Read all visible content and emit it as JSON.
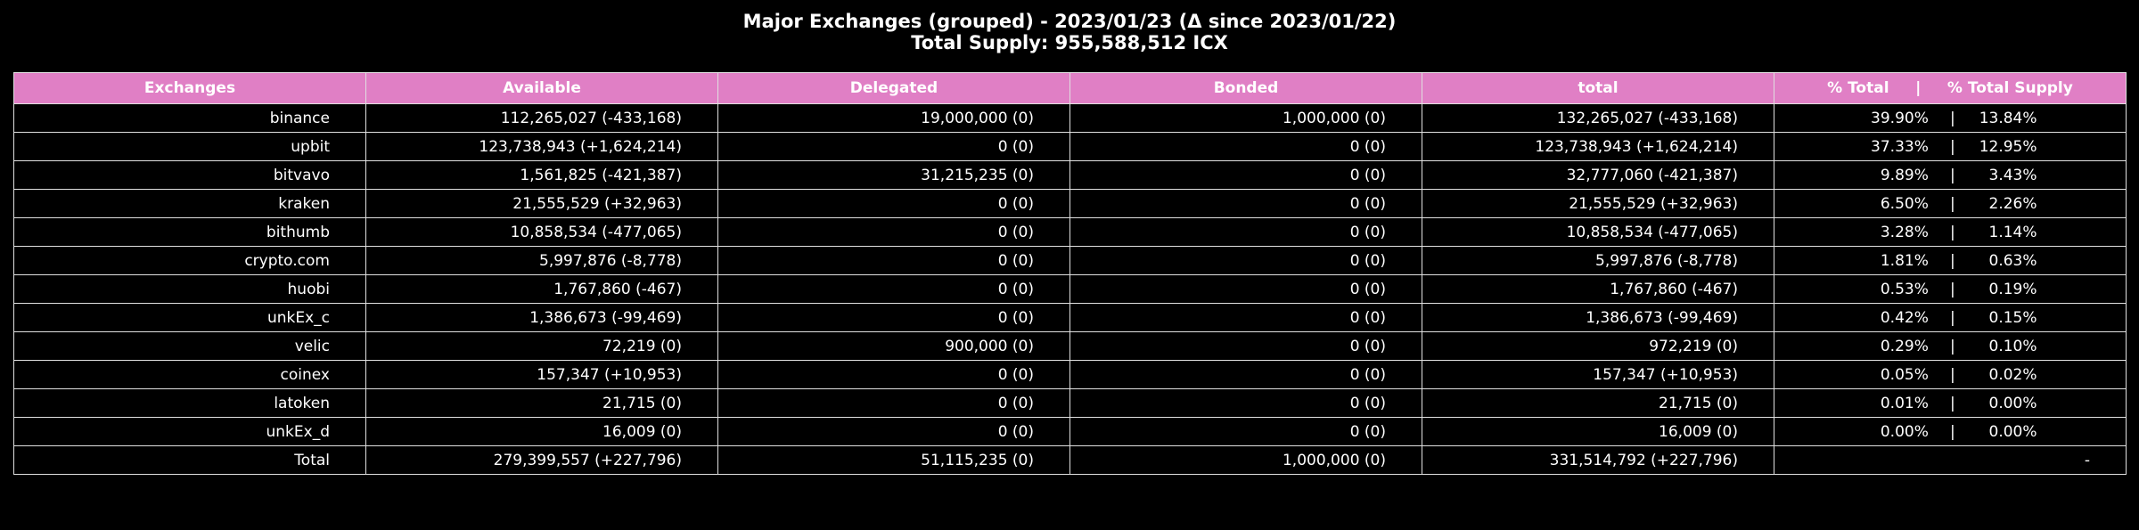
{
  "chart_data": {
    "type": "table",
    "title": "Major Exchanges (grouped) - 2023/01/23 (Δ since 2023/01/22)",
    "subtitle": "Total Supply: 955,588,512 ICX",
    "columns": [
      "Exchanges",
      "Available",
      "Delegated",
      "Bonded",
      "total",
      "% Total     |     % Total Supply"
    ],
    "rows": [
      {
        "exchange": "binance",
        "available": "112,265,027 (-433,168)",
        "delegated": "19,000,000 (0)",
        "bonded": "1,000,000 (0)",
        "total": "132,265,027 (-433,168)",
        "pct_total": "39.90%",
        "sep": "|",
        "pct_supply": "13.84%"
      },
      {
        "exchange": "upbit",
        "available": "123,738,943 (+1,624,214)",
        "delegated": "0 (0)",
        "bonded": "0 (0)",
        "total": "123,738,943 (+1,624,214)",
        "pct_total": "37.33%",
        "sep": "|",
        "pct_supply": "12.95%"
      },
      {
        "exchange": "bitvavo",
        "available": "1,561,825 (-421,387)",
        "delegated": "31,215,235 (0)",
        "bonded": "0 (0)",
        "total": "32,777,060 (-421,387)",
        "pct_total": "9.89%",
        "sep": "|",
        "pct_supply": "3.43%"
      },
      {
        "exchange": "kraken",
        "available": "21,555,529 (+32,963)",
        "delegated": "0 (0)",
        "bonded": "0 (0)",
        "total": "21,555,529 (+32,963)",
        "pct_total": "6.50%",
        "sep": "|",
        "pct_supply": "2.26%"
      },
      {
        "exchange": "bithumb",
        "available": "10,858,534 (-477,065)",
        "delegated": "0 (0)",
        "bonded": "0 (0)",
        "total": "10,858,534 (-477,065)",
        "pct_total": "3.28%",
        "sep": "|",
        "pct_supply": "1.14%"
      },
      {
        "exchange": "crypto.com",
        "available": "5,997,876 (-8,778)",
        "delegated": "0 (0)",
        "bonded": "0 (0)",
        "total": "5,997,876 (-8,778)",
        "pct_total": "1.81%",
        "sep": "|",
        "pct_supply": "0.63%"
      },
      {
        "exchange": "huobi",
        "available": "1,767,860 (-467)",
        "delegated": "0 (0)",
        "bonded": "0 (0)",
        "total": "1,767,860 (-467)",
        "pct_total": "0.53%",
        "sep": "|",
        "pct_supply": "0.19%"
      },
      {
        "exchange": "unkEx_c",
        "available": "1,386,673 (-99,469)",
        "delegated": "0 (0)",
        "bonded": "0 (0)",
        "total": "1,386,673 (-99,469)",
        "pct_total": "0.42%",
        "sep": "|",
        "pct_supply": "0.15%"
      },
      {
        "exchange": "velic",
        "available": "72,219 (0)",
        "delegated": "900,000 (0)",
        "bonded": "0 (0)",
        "total": "972,219 (0)",
        "pct_total": "0.29%",
        "sep": "|",
        "pct_supply": "0.10%"
      },
      {
        "exchange": "coinex",
        "available": "157,347 (+10,953)",
        "delegated": "0 (0)",
        "bonded": "0 (0)",
        "total": "157,347 (+10,953)",
        "pct_total": "0.05%",
        "sep": "|",
        "pct_supply": "0.02%"
      },
      {
        "exchange": "latoken",
        "available": "21,715 (0)",
        "delegated": "0 (0)",
        "bonded": "0 (0)",
        "total": "21,715 (0)",
        "pct_total": "0.01%",
        "sep": "|",
        "pct_supply": "0.00%"
      },
      {
        "exchange": "unkEx_d",
        "available": "16,009 (0)",
        "delegated": "0 (0)",
        "bonded": "0 (0)",
        "total": "16,009 (0)",
        "pct_total": "0.00%",
        "sep": "|",
        "pct_supply": "0.00%"
      }
    ],
    "total_row": {
      "exchange": "Total",
      "available": "279,399,557 (+227,796)",
      "delegated": "51,115,235 (0)",
      "bonded": "1,000,000 (0)",
      "total": "331,514,792 (+227,796)",
      "pct": "-"
    },
    "colors": {
      "header_bg": "#e07fc5",
      "background": "#000000",
      "text": "#ffffff",
      "grid": "#e0e0e0"
    }
  }
}
